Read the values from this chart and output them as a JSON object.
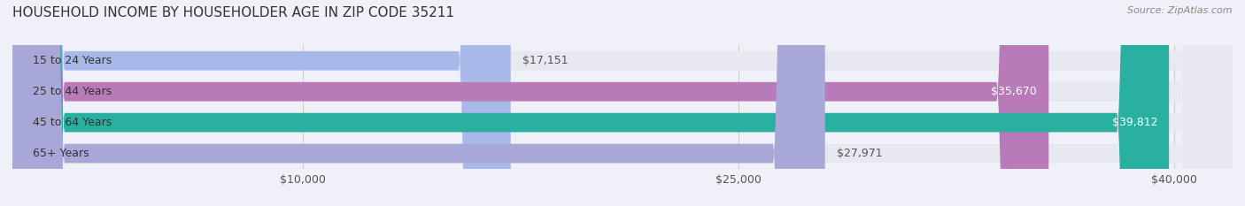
{
  "title": "HOUSEHOLD INCOME BY HOUSEHOLDER AGE IN ZIP CODE 35211",
  "source": "Source: ZipAtlas.com",
  "categories": [
    "15 to 24 Years",
    "25 to 44 Years",
    "45 to 64 Years",
    "65+ Years"
  ],
  "values": [
    17151,
    35670,
    39812,
    27971
  ],
  "bar_colors": [
    "#a8b8e8",
    "#b87ab8",
    "#2ab0a0",
    "#a8a8d8"
  ],
  "bar_labels": [
    "$17,151",
    "$35,670",
    "$39,812",
    "$27,971"
  ],
  "label_colors": [
    "#555555",
    "#ffffff",
    "#ffffff",
    "#555555"
  ],
  "xlim": [
    0,
    42000
  ],
  "xticks": [
    10000,
    25000,
    40000
  ],
  "xticklabels": [
    "$10,000",
    "$25,000",
    "$40,000"
  ],
  "background_color": "#f0f0f8",
  "bar_bg_color": "#e8e8f0",
  "title_fontsize": 11,
  "source_fontsize": 8,
  "tick_fontsize": 9,
  "label_fontsize": 9,
  "category_fontsize": 9
}
